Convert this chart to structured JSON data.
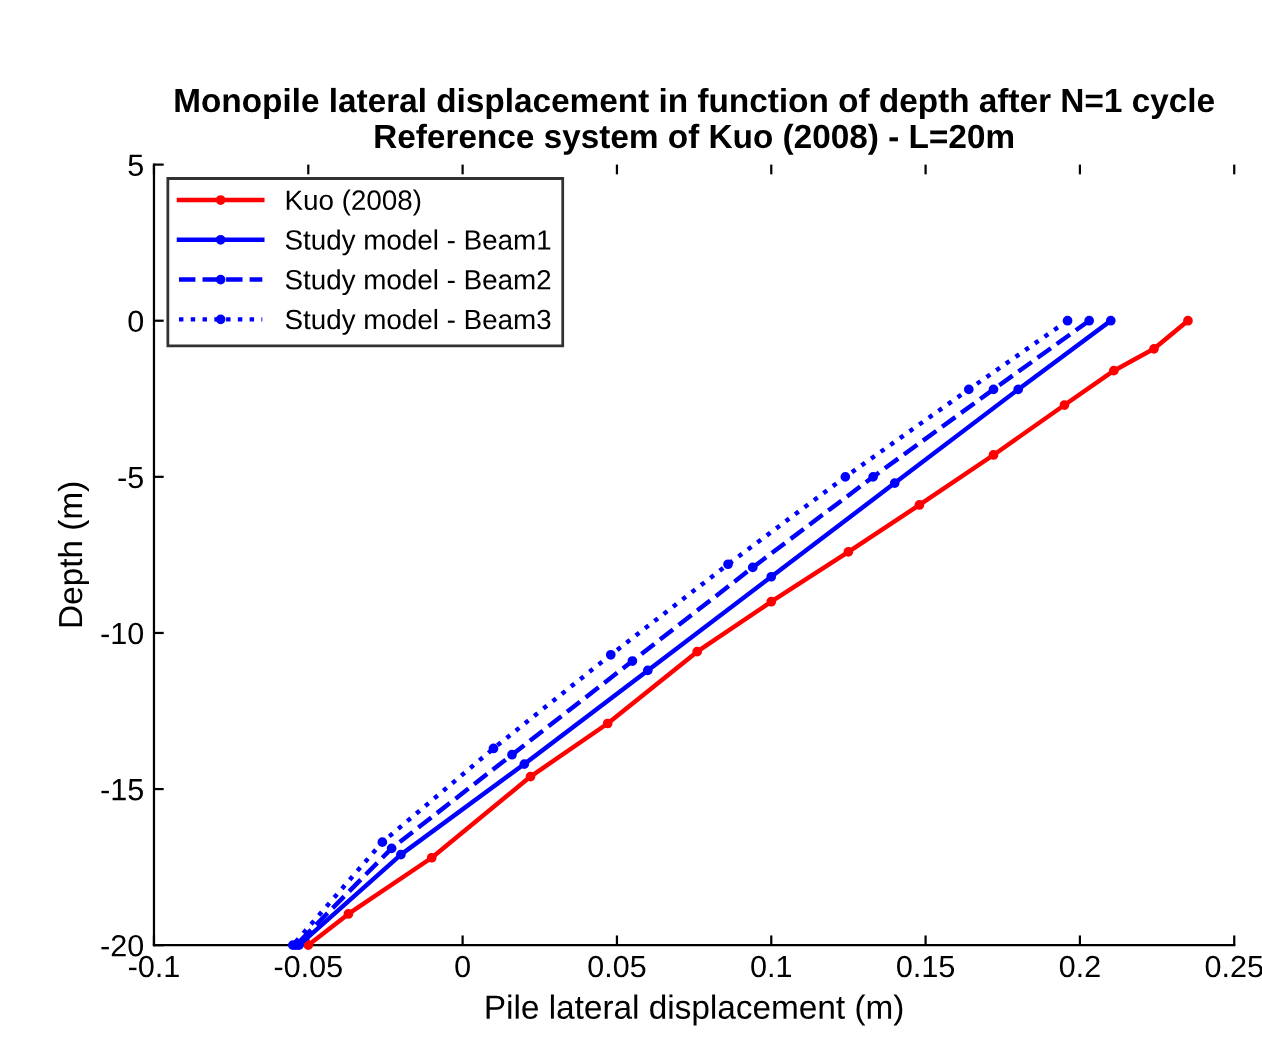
{
  "chart_data": {
    "type": "line",
    "title": "Monopile lateral displacement in function of depth after N=1 cycle\nReference system of Kuo (2008) - L=20m",
    "xlabel": "Pile lateral displacement (m)",
    "ylabel": "Depth (m)",
    "xlim": [
      -0.1,
      0.25
    ],
    "xticks": [
      -0.1,
      -0.05,
      0,
      0.05,
      0.1,
      0.15,
      0.2,
      0.25
    ],
    "ylim": [
      -20,
      5
    ],
    "yticks": [
      -20,
      -15,
      -10,
      -5,
      0,
      5
    ],
    "grid": false,
    "legend": "top left",
    "marker": "circle",
    "series": [
      {
        "name": "Kuo (2008)",
        "color": "#ff0000",
        "line_style": "solid",
        "x": [
          0.235,
          0.224,
          0.211,
          0.195,
          0.172,
          0.148,
          0.125,
          0.1,
          0.076,
          0.047,
          0.022,
          -0.01,
          -0.037,
          -0.05
        ],
        "values": [
          0,
          -0.9,
          -1.6,
          -2.7,
          -4.3,
          -5.9,
          -7.4,
          -9,
          -10.6,
          -12.9,
          -14.6,
          -17.2,
          -19,
          -20
        ]
      },
      {
        "name": "Study model - Beam1",
        "color": "#0000ff",
        "line_style": "solid",
        "x": [
          0.21,
          0.18,
          0.14,
          0.1,
          0.06,
          0.02,
          -0.02,
          -0.053
        ],
        "values": [
          0,
          -2.2,
          -5.2,
          -8.2,
          -11.2,
          -14.2,
          -17.1,
          -20
        ]
      },
      {
        "name": "Study model - Beam2",
        "color": "#0000ff",
        "line_style": "dashed",
        "x": [
          0.203,
          0.172,
          0.133,
          0.094,
          0.055,
          0.016,
          -0.023,
          -0.054
        ],
        "values": [
          0,
          -2.2,
          -5,
          -7.9,
          -10.9,
          -13.9,
          -16.9,
          -20
        ]
      },
      {
        "name": "Study model - Beam3",
        "color": "#0000ff",
        "line_style": "dotted",
        "x": [
          0.196,
          0.164,
          0.124,
          0.086,
          0.048,
          0.01,
          -0.026,
          -0.055
        ],
        "values": [
          0,
          -2.2,
          -5,
          -7.8,
          -10.7,
          -13.7,
          -16.7,
          -20
        ]
      }
    ]
  }
}
